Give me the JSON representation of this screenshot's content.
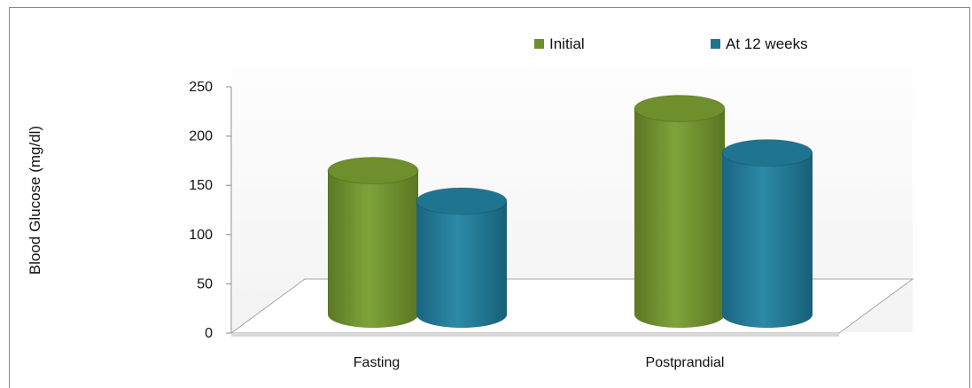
{
  "chart_data": {
    "type": "bar",
    "style": "3d-cylinder",
    "title": "",
    "xlabel": "",
    "ylabel": "Blood Glucose (mg/dl)",
    "ylim": [
      0,
      250
    ],
    "yticks": [
      0,
      50,
      100,
      150,
      200,
      250
    ],
    "categories": [
      "Fasting",
      "Postprandial"
    ],
    "series": [
      {
        "name": "Initial",
        "values": [
          165,
          228
        ],
        "color": "#6e8f2c"
      },
      {
        "name": "At 12 weeks",
        "values": [
          134,
          183
        ],
        "color": "#1f7590"
      }
    ],
    "legend_position": "top-right",
    "grid": false
  }
}
